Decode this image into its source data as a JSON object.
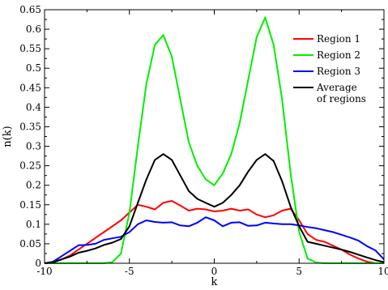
{
  "chart_data": {
    "type": "line",
    "xlabel": "k",
    "ylabel": "n(k)",
    "xlim": [
      -10,
      10
    ],
    "ylim": [
      0,
      0.65
    ],
    "x_ticks": [
      -10,
      -5,
      0,
      5,
      10
    ],
    "x_tick_labels": [
      "-10",
      "-5",
      "0",
      "5",
      "10"
    ],
    "y_ticks": [
      0,
      0.05,
      0.1,
      0.15,
      0.2,
      0.25,
      0.3,
      0.35,
      0.4,
      0.45,
      0.5,
      0.55,
      0.6,
      0.65
    ],
    "y_tick_labels": [
      "0",
      "0.05",
      "0.1",
      "0.15",
      "0.2",
      "0.25",
      "0.3",
      "0.35",
      "0.4",
      "0.45",
      "0.5",
      "0.55",
      "0.6",
      "0.65"
    ],
    "grid": false,
    "legend_position": "top-right",
    "series": [
      {
        "name": "Region 1",
        "color": "#ff0000",
        "x": [
          -10,
          -9.5,
          -9,
          -8.5,
          -8,
          -7.5,
          -7,
          -6.5,
          -6,
          -5.5,
          -5,
          -4.5,
          -4,
          -3.5,
          -3,
          -2.5,
          -2,
          -1.5,
          -1,
          -0.5,
          0,
          0.5,
          1,
          1.5,
          2,
          2.5,
          3,
          3.5,
          4,
          4.5,
          5,
          5.5,
          6,
          6.5,
          7,
          7.5,
          8,
          8.5,
          9,
          9.5,
          10
        ],
        "y": [
          0,
          0.003,
          0.01,
          0.02,
          0.035,
          0.05,
          0.065,
          0.08,
          0.095,
          0.11,
          0.13,
          0.15,
          0.145,
          0.138,
          0.155,
          0.16,
          0.148,
          0.135,
          0.14,
          0.138,
          0.133,
          0.135,
          0.14,
          0.135,
          0.138,
          0.125,
          0.118,
          0.123,
          0.135,
          0.14,
          0.11,
          0.075,
          0.06,
          0.055,
          0.045,
          0.035,
          0.022,
          0.012,
          0.004,
          0,
          0
        ]
      },
      {
        "name": "Region 2",
        "color": "#00ee00",
        "x": [
          -10,
          -6.5,
          -6,
          -5.5,
          -5,
          -4.5,
          -4,
          -3.5,
          -3,
          -2.5,
          -2,
          -1.5,
          -1,
          -0.5,
          0,
          0.5,
          1,
          1.5,
          2,
          2.5,
          3,
          3.5,
          4,
          4.5,
          5,
          5.5,
          6,
          6.5,
          10
        ],
        "y": [
          0,
          0,
          0.003,
          0.025,
          0.13,
          0.3,
          0.46,
          0.56,
          0.585,
          0.53,
          0.42,
          0.31,
          0.25,
          0.215,
          0.2,
          0.23,
          0.28,
          0.36,
          0.47,
          0.58,
          0.63,
          0.56,
          0.42,
          0.23,
          0.08,
          0.012,
          0.002,
          0,
          0
        ]
      },
      {
        "name": "Region 3",
        "color": "#0000ff",
        "x": [
          -10,
          -9.5,
          -9,
          -8.5,
          -8,
          -7.5,
          -7,
          -6.5,
          -6,
          -5.5,
          -5,
          -4.5,
          -4,
          -3.5,
          -3,
          -2.5,
          -2,
          -1.5,
          -1,
          -0.5,
          0,
          0.5,
          1,
          1.5,
          2,
          2.5,
          3,
          3.5,
          4,
          4.5,
          5,
          5.5,
          6,
          6.5,
          7,
          7.5,
          8,
          8.5,
          9,
          9.5,
          10
        ],
        "y": [
          0,
          0.004,
          0.018,
          0.032,
          0.046,
          0.047,
          0.05,
          0.06,
          0.064,
          0.068,
          0.08,
          0.1,
          0.11,
          0.106,
          0.104,
          0.105,
          0.097,
          0.095,
          0.104,
          0.118,
          0.11,
          0.095,
          0.104,
          0.105,
          0.096,
          0.097,
          0.104,
          0.102,
          0.1,
          0.1,
          0.097,
          0.093,
          0.09,
          0.085,
          0.08,
          0.073,
          0.066,
          0.058,
          0.044,
          0.033,
          0.01
        ]
      },
      {
        "name": "Average\nof regions",
        "color": "#000000",
        "x": [
          -10,
          -9.5,
          -9,
          -8.5,
          -8,
          -7.5,
          -7,
          -6.5,
          -6,
          -5.5,
          -5,
          -4.5,
          -4,
          -3.5,
          -3,
          -2.5,
          -2,
          -1.5,
          -1,
          -0.5,
          0,
          0.5,
          1,
          1.5,
          2,
          2.5,
          3,
          3.5,
          4,
          4.5,
          5,
          5.5,
          6,
          6.5,
          7,
          7.5,
          8,
          8.5,
          9,
          9.5,
          10
        ],
        "y": [
          0,
          0.002,
          0.01,
          0.017,
          0.027,
          0.032,
          0.038,
          0.047,
          0.053,
          0.062,
          0.095,
          0.155,
          0.215,
          0.265,
          0.28,
          0.265,
          0.225,
          0.185,
          0.165,
          0.155,
          0.145,
          0.155,
          0.175,
          0.2,
          0.235,
          0.265,
          0.28,
          0.262,
          0.21,
          0.145,
          0.095,
          0.055,
          0.05,
          0.045,
          0.04,
          0.035,
          0.029,
          0.022,
          0.015,
          0.008,
          0.003
        ]
      }
    ]
  }
}
